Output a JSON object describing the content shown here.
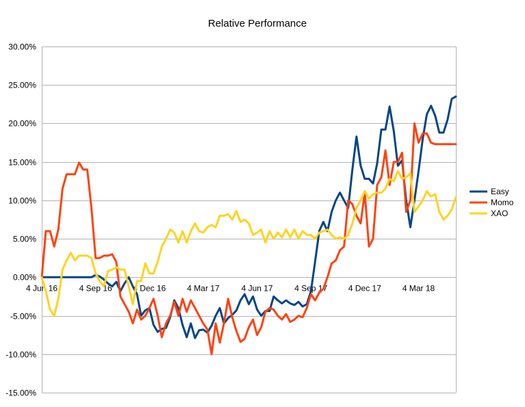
{
  "chart_data": {
    "type": "line",
    "title": "Relative Performance",
    "xlabel": "",
    "ylabel": "",
    "ylim": [
      -0.15,
      0.3
    ],
    "y_ticks": [
      -0.15,
      -0.1,
      -0.05,
      0.0,
      0.05,
      0.1,
      0.15,
      0.2,
      0.25,
      0.3
    ],
    "y_tick_labels": [
      "-15.00%",
      "-10.00%",
      "-5.00%",
      "0.00%",
      "5.00%",
      "10.00%",
      "15.00%",
      "20.00%",
      "25.00%",
      "30.00%"
    ],
    "x_tick_labels": [
      {
        "label": "4 Jun 16",
        "index": 0
      },
      {
        "label": "4 Sep 16",
        "index": 13
      },
      {
        "label": "4 Dec 16",
        "index": 26
      },
      {
        "label": "4 Mar 17",
        "index": 39
      },
      {
        "label": "4 Jun 17",
        "index": 52
      },
      {
        "label": "4 Sep 17",
        "index": 65
      },
      {
        "label": "4 Dec 17",
        "index": 78
      },
      {
        "label": "4 Mar 18",
        "index": 91
      }
    ],
    "num_points": 101,
    "grid": true,
    "legend_position": "right",
    "series": [
      {
        "name": "Easy",
        "color": "#004586",
        "values": [
          0.0,
          0.0,
          0.0,
          0.0,
          0.0,
          0.0,
          0.0,
          0.0,
          0.0,
          0.0,
          0.0,
          0.0,
          0.0,
          0.003,
          0.001,
          -0.003,
          -0.008,
          -0.012,
          -0.006,
          -0.018,
          -0.008,
          0.0,
          -0.012,
          -0.022,
          -0.05,
          -0.043,
          -0.04,
          -0.062,
          -0.071,
          -0.067,
          -0.066,
          -0.052,
          -0.03,
          -0.04,
          -0.062,
          -0.078,
          -0.06,
          -0.079,
          -0.069,
          -0.068,
          -0.072,
          -0.063,
          -0.05,
          -0.04,
          -0.06,
          -0.053,
          -0.049,
          -0.043,
          -0.03,
          -0.022,
          -0.035,
          -0.025,
          -0.042,
          -0.05,
          -0.044,
          -0.044,
          -0.025,
          -0.03,
          -0.034,
          -0.03,
          -0.034,
          -0.036,
          -0.032,
          -0.038,
          -0.035,
          -0.018,
          0.02,
          0.06,
          0.072,
          0.06,
          0.085,
          0.1,
          0.11,
          0.1,
          0.09,
          0.14,
          0.183,
          0.145,
          0.128,
          0.128,
          0.122,
          0.148,
          0.192,
          0.192,
          0.222,
          0.19,
          0.145,
          0.152,
          0.1,
          0.065,
          0.1,
          0.138,
          0.18,
          0.212,
          0.223,
          0.21,
          0.188,
          0.188,
          0.205,
          0.232,
          0.235
        ]
      },
      {
        "name": "Momo",
        "color": "#ff420e",
        "values": [
          0.0,
          0.06,
          0.06,
          0.04,
          0.062,
          0.115,
          0.134,
          0.134,
          0.134,
          0.149,
          0.14,
          0.14,
          0.09,
          0.025,
          0.025,
          0.028,
          0.028,
          0.03,
          0.02,
          -0.025,
          -0.035,
          -0.045,
          -0.06,
          -0.042,
          -0.055,
          -0.05,
          -0.04,
          -0.028,
          -0.05,
          -0.078,
          -0.06,
          -0.05,
          -0.032,
          -0.05,
          -0.028,
          -0.045,
          -0.03,
          -0.04,
          -0.05,
          -0.06,
          -0.068,
          -0.1,
          -0.06,
          -0.085,
          -0.06,
          -0.028,
          -0.052,
          -0.07,
          -0.084,
          -0.08,
          -0.065,
          -0.055,
          -0.075,
          -0.065,
          -0.045,
          -0.04,
          -0.042,
          -0.05,
          -0.055,
          -0.048,
          -0.058,
          -0.055,
          -0.05,
          -0.052,
          -0.04,
          -0.022,
          -0.03,
          -0.02,
          -0.015,
          0.0,
          0.018,
          0.022,
          0.035,
          0.04,
          0.1,
          0.095,
          0.08,
          0.07,
          0.11,
          0.04,
          0.05,
          0.12,
          0.13,
          0.165,
          0.12,
          0.15,
          0.15,
          0.162,
          0.085,
          0.1,
          0.2,
          0.175,
          0.187,
          0.187,
          0.175,
          0.173,
          0.173,
          0.173,
          0.173,
          0.173,
          0.173
        ]
      },
      {
        "name": "XAO",
        "color": "#ffd320",
        "values": [
          0.0,
          -0.018,
          -0.042,
          -0.05,
          -0.028,
          0.01,
          0.022,
          0.032,
          0.022,
          0.028,
          0.028,
          0.028,
          0.025,
          0.005,
          -0.005,
          -0.012,
          0.008,
          0.01,
          0.013,
          0.01,
          0.01,
          -0.012,
          -0.035,
          -0.005,
          -0.005,
          0.018,
          0.005,
          0.005,
          0.02,
          0.04,
          0.05,
          0.062,
          0.058,
          0.045,
          0.06,
          0.045,
          0.06,
          0.07,
          0.06,
          0.058,
          0.065,
          0.068,
          0.065,
          0.08,
          0.08,
          0.082,
          0.075,
          0.086,
          0.072,
          0.075,
          0.07,
          0.055,
          0.058,
          0.062,
          0.045,
          0.06,
          0.05,
          0.058,
          0.052,
          0.062,
          0.052,
          0.062,
          0.05,
          0.06,
          0.055,
          0.055,
          0.05,
          0.058,
          0.06,
          0.062,
          0.055,
          0.05,
          0.052,
          0.05,
          0.055,
          0.07,
          0.09,
          0.1,
          0.112,
          0.102,
          0.108,
          0.11,
          0.11,
          0.115,
          0.128,
          0.125,
          0.138,
          0.128,
          0.13,
          0.135,
          0.085,
          0.092,
          0.1,
          0.112,
          0.105,
          0.108,
          0.085,
          0.075,
          0.08,
          0.088,
          0.104
        ]
      }
    ]
  }
}
